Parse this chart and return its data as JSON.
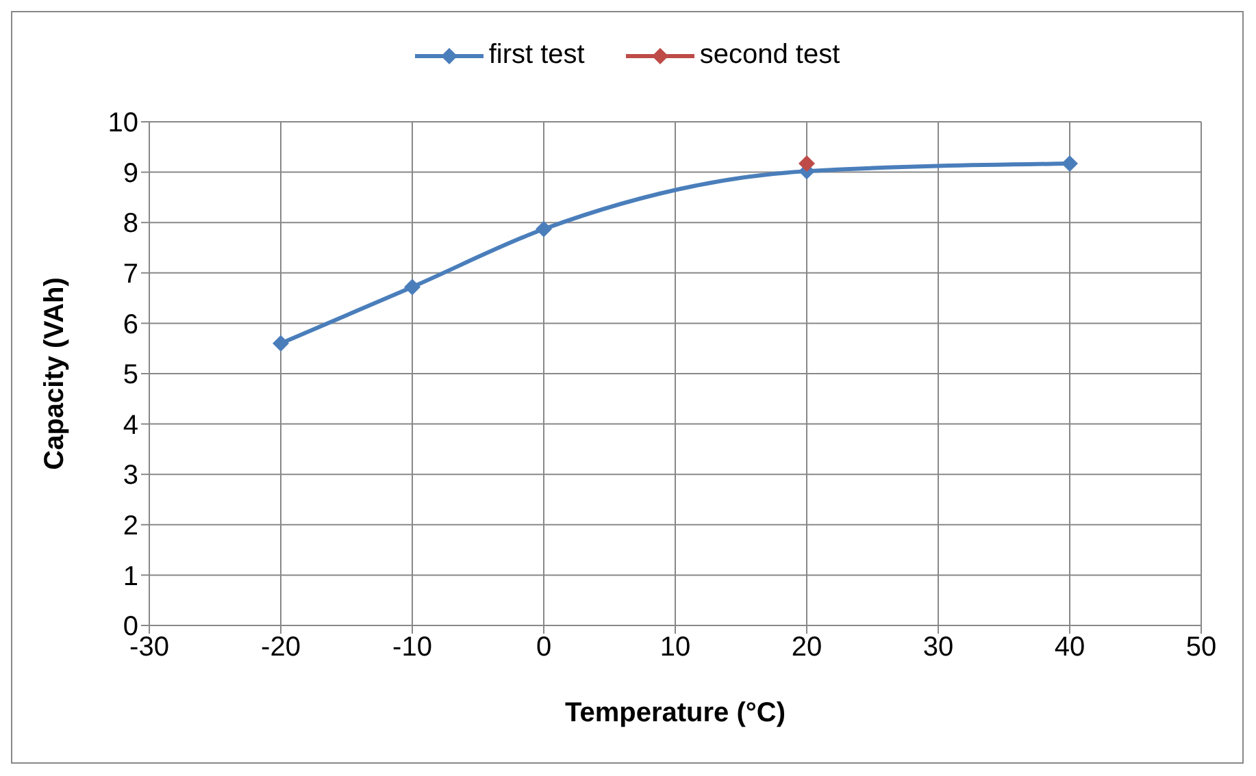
{
  "chart_data": {
    "type": "line",
    "xlabel": "Temperature (°C)",
    "ylabel": "Capacity (VAh)",
    "x": [
      -20,
      -10,
      0,
      20,
      40
    ],
    "series": [
      {
        "name": "first test",
        "color": "#4a7ebb",
        "values": [
          5.6,
          6.72,
          7.87,
          9.02,
          9.17
        ]
      },
      {
        "name": "second test",
        "color": "#be4b48",
        "x": [
          20
        ],
        "values": [
          9.17
        ]
      }
    ],
    "xlim": [
      -30,
      50
    ],
    "xticks": [
      -30,
      -20,
      -10,
      0,
      10,
      20,
      30,
      40,
      50
    ],
    "ylim": [
      0,
      10
    ],
    "yticks": [
      0,
      1,
      2,
      3,
      4,
      5,
      6,
      7,
      8,
      9,
      10
    ],
    "grid": true,
    "legend": "top",
    "marker": "diamond",
    "line_style": "solid"
  }
}
